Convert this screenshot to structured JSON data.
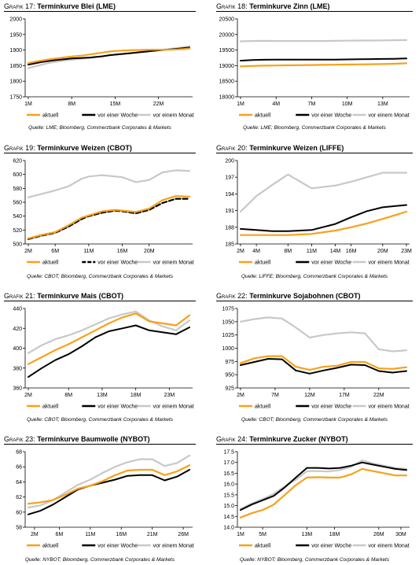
{
  "colors": {
    "aktuell": "#f7a11a",
    "woche": "#000000",
    "monat": "#c8c8c8"
  },
  "charts": [
    {
      "prefix": "Grafik 17:",
      "title": "Terminkurve Blei (LME)",
      "source": "Quelle: LME; Bloomberg, Commerzbank Corporates & Markets",
      "legend": [
        "aktuell",
        "vor einer Woche",
        "vor einem Monat"
      ],
      "chart_data": {
        "type": "line",
        "title": "Grafik 17: Terminkurve Blei (LME)",
        "x": [
          1,
          2,
          3,
          4,
          5,
          6,
          7,
          8,
          9,
          10,
          11,
          12,
          13,
          14,
          15,
          16,
          17,
          18,
          19,
          20,
          21,
          22,
          23,
          24,
          25,
          26,
          27
        ],
        "xticks": [
          1,
          8,
          15,
          22
        ],
        "xtick_labels": [
          "1M",
          "8M",
          "15M",
          "22M"
        ],
        "ylim": [
          1750,
          2000
        ],
        "yticks": [
          1750,
          1800,
          1850,
          1900,
          1950,
          2000
        ],
        "grid": false,
        "series": [
          {
            "name": "aktuell",
            "values": [
              1858,
              1862,
              1866,
              1869,
              1872,
              1874,
              1877,
              1879,
              1881,
              1883,
              1886,
              1889,
              1892,
              1895,
              1897,
              1898,
              1899,
              1900,
              1900,
              1901,
              1901,
              1901,
              1901,
              1901,
              1902,
              1903,
              1905
            ]
          },
          {
            "name": "vor einer Woche",
            "values": [
              1853,
              1857,
              1861,
              1864,
              1867,
              1869,
              1871,
              1873,
              1874,
              1875,
              1876,
              1878,
              1880,
              1883,
              1885,
              1887,
              1889,
              1891,
              1893,
              1895,
              1897,
              1899,
              1901,
              1902,
              1904,
              1906,
              1908
            ]
          },
          {
            "name": "vor einem Monat",
            "values": [
              1842,
              1847,
              1852,
              1857,
              1861,
              1864,
              1867,
              1869,
              1871,
              1873,
              1875,
              1877,
              1880,
              1883,
              1886,
              1888,
              1890,
              1892,
              1894,
              1896,
              1898,
              1900,
              1902,
              1904,
              1906,
              1909,
              1912
            ]
          }
        ]
      }
    },
    {
      "prefix": "Grafik 18:",
      "title": "Terminkurve Zinn (LME)",
      "source": "Quelle: LME; Bloomberg, Commerzbank Corporates & Markets",
      "legend": [
        "aktuell",
        "vor einer Woche",
        "vor einem Monat"
      ],
      "chart_data": {
        "type": "line",
        "title": "Grafik 18: Terminkurve Zinn (LME)",
        "x": [
          1,
          2,
          3,
          4,
          5,
          6,
          7,
          8,
          9,
          10,
          11,
          12,
          13,
          14,
          15
        ],
        "xticks": [
          1,
          4,
          7,
          10,
          13
        ],
        "xtick_labels": [
          "1M",
          "4M",
          "7M",
          "10M",
          "13M"
        ],
        "ylim": [
          18000,
          20500
        ],
        "yticks": [
          18000,
          18500,
          19000,
          19500,
          20000,
          20500
        ],
        "grid": false,
        "series": [
          {
            "name": "aktuell",
            "values": [
              18975,
              18990,
              19000,
              19005,
              19010,
              19015,
              19020,
              19025,
              19030,
              19035,
              19040,
              19045,
              19050,
              19060,
              19075
            ]
          },
          {
            "name": "vor einer Woche",
            "values": [
              19160,
              19180,
              19190,
              19195,
              19195,
              19195,
              19195,
              19195,
              19195,
              19200,
              19205,
              19210,
              19215,
              19220,
              19230
            ]
          },
          {
            "name": "vor einem Monat",
            "values": [
              19780,
              19790,
              19795,
              19790,
              19790,
              19790,
              19790,
              19790,
              19795,
              19800,
              19805,
              19805,
              19810,
              19815,
              19820
            ]
          }
        ]
      }
    },
    {
      "prefix": "Grafik 19:",
      "title": "Terminkurve Weizen (CBOT)",
      "source": "Quelle: CBOT; Bloomberg, Commerzbank Corporates & Markets",
      "legend": [
        "aktuell",
        "vor einer Woche",
        "vor einem Monat"
      ],
      "chart_data": {
        "type": "line",
        "title": "Grafik 19: Terminkurve Weizen (CBOT)",
        "x": [
          2,
          4,
          6,
          8,
          10,
          11,
          13,
          15,
          16,
          18,
          20,
          22,
          24,
          26
        ],
        "xticks": [
          2,
          6,
          11,
          16,
          20
        ],
        "xtick_labels": [
          "2M",
          "6M",
          "11M",
          "16M",
          "20M"
        ],
        "ylim": [
          500,
          620
        ],
        "yticks": [
          500,
          520,
          540,
          560,
          580,
          600,
          620
        ],
        "grid": false,
        "series": [
          {
            "name": "aktuell",
            "values": [
              508,
              513,
              517,
              527,
              538,
              541,
              547,
              549,
              548,
              546,
              551,
              563,
              569,
              568
            ]
          },
          {
            "name": "vor einer Woche",
            "values": [
              507,
              512,
              516,
              525,
              536,
              540,
              545,
              548,
              547,
              544,
              549,
              559,
              565,
              565
            ]
          },
          {
            "name": "vor einem Monat",
            "values": [
              567,
              572,
              577,
              583,
              594,
              597,
              599,
              597,
              596,
              589,
              592,
              603,
              606,
              605
            ]
          }
        ]
      }
    },
    {
      "prefix": "Grafik 20:",
      "title": "Terminkurve Weizen (LIFFE)",
      "source": "Quelle: LIFFE; Bloomberg, Commerzbank Corporates & Markets",
      "legend": [
        "aktuell",
        "vor einer Woche",
        "vor einem Monat"
      ],
      "chart_data": {
        "type": "line",
        "title": "Grafik 20: Terminkurve Weizen (LIFFE)",
        "x": [
          2,
          4,
          6,
          8,
          11,
          14,
          16,
          18,
          20,
          23
        ],
        "xticks": [
          2,
          4,
          8,
          11,
          14,
          16,
          20,
          23
        ],
        "xtick_labels": [
          "2M",
          "4M",
          "8M",
          "11M",
          "14M",
          "16M",
          "20M",
          "23M"
        ],
        "ylim": [
          185,
          200
        ],
        "yticks": [
          185,
          188,
          191,
          194,
          197,
          200
        ],
        "grid": false,
        "series": [
          {
            "name": "aktuell",
            "values": [
              186.6,
              186.6,
              186.6,
              186.6,
              186.8,
              187.4,
              188.0,
              188.7,
              189.5,
              190.8
            ]
          },
          {
            "name": "vor einer Woche",
            "values": [
              187.7,
              187.5,
              187.3,
              187.3,
              187.5,
              188.6,
              189.8,
              190.9,
              191.6,
              192.0
            ]
          },
          {
            "name": "vor einem Monat",
            "values": [
              190.8,
              193.6,
              195.6,
              197.5,
              195.0,
              195.5,
              196.2,
              197.0,
              197.8,
              197.8
            ]
          }
        ]
      }
    },
    {
      "prefix": "Grafik 21:",
      "title": "Terminkurve Mais (CBOT)",
      "source": "Quelle: CBOT; Bloomberg, Commerzbank Corporates & Markets",
      "legend": [
        "aktuell",
        "vor einer Woche",
        "vor einem Monat"
      ],
      "chart_data": {
        "type": "line",
        "title": "Grafik 21: Terminkurve Mais (CBOT)",
        "x": [
          2,
          4,
          6,
          8,
          10,
          12,
          14,
          16,
          18,
          20,
          22,
          24,
          26
        ],
        "xticks": [
          2,
          8,
          13,
          18,
          23
        ],
        "xtick_labels": [
          "2M",
          "8M",
          "13M",
          "18M",
          "23M"
        ],
        "ylim": [
          360,
          440
        ],
        "yticks": [
          360,
          380,
          400,
          420,
          440
        ],
        "grid": false,
        "series": [
          {
            "name": "aktuell",
            "values": [
              384,
              391,
              398,
              404,
              411,
              418,
              425,
              431,
              435,
              427,
              425,
              423,
              433
            ]
          },
          {
            "name": "vor einer Woche",
            "values": [
              371,
              380,
              388,
              394,
              402,
              411,
              417,
              420,
              423,
              418,
              416,
              414,
              421
            ]
          },
          {
            "name": "vor einem Monat",
            "values": [
              395,
              403,
              409,
              413,
              418,
              424,
              430,
              434,
              437,
              428,
              422,
              418,
              428
            ]
          }
        ]
      }
    },
    {
      "prefix": "Grafik 22:",
      "title": "Terminkurve Sojabohnen (CBOT)",
      "source": "Quelle: CBOT; Bloomberg, Commerzbank Corporates & Markets",
      "legend": [
        "aktuell",
        "vor einer Woche",
        "vor einem Monat"
      ],
      "chart_data": {
        "type": "line",
        "title": "Grafik 22: Terminkurve Sojabohnen (CBOT)",
        "x": [
          2,
          4,
          6,
          8,
          10,
          12,
          14,
          16,
          18,
          20,
          22,
          24,
          26
        ],
        "xticks": [
          2,
          7,
          12,
          17,
          22
        ],
        "xtick_labels": [
          "2M",
          "7M",
          "12M",
          "17M",
          "22M"
        ],
        "ylim": [
          925,
          1075
        ],
        "yticks": [
          925,
          950,
          975,
          1000,
          1025,
          1050,
          1075
        ],
        "grid": false,
        "series": [
          {
            "name": "aktuell",
            "values": [
              972,
              981,
              985,
              985,
              965,
              959,
              965,
              967,
              974,
              974,
              962,
              961,
              964
            ]
          },
          {
            "name": "vor einer Woche",
            "values": [
              968,
              974,
              980,
              979,
              958,
              952,
              958,
              963,
              969,
              968,
              957,
              954,
              957
            ]
          },
          {
            "name": "vor einem Monat",
            "values": [
              1050,
              1055,
              1058,
              1056,
              1039,
              1020,
              1025,
              1028,
              1030,
              1028,
              998,
              994,
              996
            ]
          }
        ]
      }
    },
    {
      "prefix": "Grafik 23:",
      "title": "Terminkurve Baumwolle (NYBOT)",
      "source": "Quelle: NYBOT; Bloomberg, Commerzbank Corporates & Markets",
      "legend": [
        "aktuell",
        "vor einer Woche",
        "vor einem Monat"
      ],
      "chart_data": {
        "type": "line",
        "title": "Grafik 23: Terminkurve Baumwolle (NYBOT)",
        "x": [
          1,
          3,
          5,
          7,
          9,
          11,
          13,
          15,
          17,
          19,
          21,
          23,
          25,
          27
        ],
        "xticks": [
          2,
          6,
          11,
          16,
          21,
          26
        ],
        "xtick_labels": [
          "2M",
          "6M",
          "11M",
          "16M",
          "21M",
          "26M"
        ],
        "ylim": [
          58,
          68
        ],
        "yticks": [
          58,
          60,
          62,
          64,
          66,
          68
        ],
        "grid": false,
        "series": [
          {
            "name": "aktuell",
            "values": [
              61.1,
              61.3,
              61.6,
              62.3,
              63.1,
              63.5,
              64.1,
              64.9,
              65.5,
              65.6,
              65.6,
              64.9,
              65.4,
              66.2
            ]
          },
          {
            "name": "vor einer Woche",
            "values": [
              59.7,
              60.2,
              61.0,
              62.0,
              63.0,
              63.5,
              63.9,
              64.3,
              64.8,
              64.9,
              64.9,
              64.2,
              64.7,
              65.6
            ]
          },
          {
            "name": "vor einem Monat",
            "values": [
              60.6,
              60.9,
              61.6,
              62.6,
              63.6,
              64.3,
              65.2,
              66.0,
              66.6,
              67.0,
              67.0,
              66.1,
              66.5,
              67.5
            ]
          }
        ]
      }
    },
    {
      "prefix": "Grafik 24:",
      "title": "Terminkurve Zucker (NYBOT)",
      "source": "Quelle: NYBOT; Bloomberg, Commerzbank Corporates & Markets",
      "legend": [
        "aktuell",
        "vor einer Woche",
        "vor einem Monat"
      ],
      "chart_data": {
        "type": "line",
        "title": "Grafik 24: Terminkurve Zucker (NYBOT)",
        "x": [
          1,
          3,
          5,
          7,
          9,
          11,
          13,
          15,
          17,
          19,
          21,
          23,
          25,
          27,
          29,
          31
        ],
        "xticks": [
          1,
          5,
          13,
          18,
          26,
          30
        ],
        "xtick_labels": [
          "1M",
          "5M",
          "13M",
          "18M",
          "26M",
          "30M"
        ],
        "ylim": [
          14.0,
          17.5
        ],
        "yticks": [
          14.0,
          14.5,
          15.0,
          15.5,
          16.0,
          16.5,
          17.0,
          17.5
        ],
        "grid": false,
        "series": [
          {
            "name": "aktuell",
            "values": [
              14.45,
              14.65,
              14.8,
              15.05,
              15.5,
              15.95,
              16.3,
              16.32,
              16.3,
              16.3,
              16.45,
              16.7,
              16.6,
              16.5,
              16.4,
              16.4
            ]
          },
          {
            "name": "vor einer Woche",
            "values": [
              14.8,
              15.05,
              15.25,
              15.45,
              15.85,
              16.3,
              16.75,
              16.75,
              16.72,
              16.75,
              16.85,
              17.0,
              16.9,
              16.8,
              16.7,
              16.65
            ]
          },
          {
            "name": "vor einem Monat",
            "values": [
              14.85,
              15.1,
              15.3,
              15.55,
              15.9,
              16.2,
              16.6,
              16.6,
              16.58,
              16.65,
              16.8,
              17.1,
              16.95,
              16.85,
              16.75,
              16.7
            ]
          }
        ]
      }
    }
  ]
}
